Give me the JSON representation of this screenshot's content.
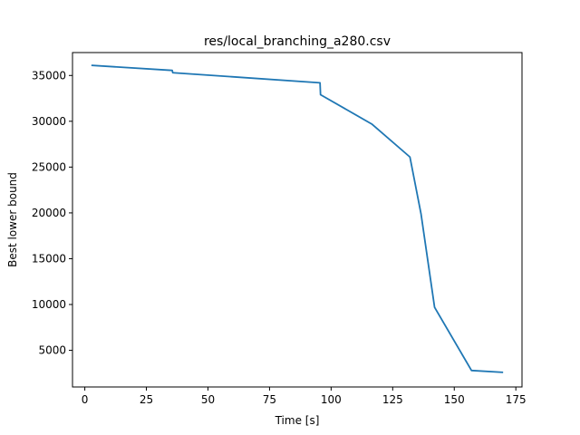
{
  "chart_data": {
    "type": "line",
    "title": "res/local_branching_a280.csv",
    "xlabel": "Time [s]",
    "ylabel": "Best lower bound",
    "xlim": [
      -5,
      177.5
    ],
    "ylim": [
      1000,
      37500
    ],
    "xticks": [
      0,
      25,
      50,
      75,
      100,
      125,
      150,
      175
    ],
    "yticks": [
      5000,
      10000,
      15000,
      20000,
      25000,
      30000,
      35000
    ],
    "grid": false,
    "line_color": "#1f77b4",
    "series": [
      {
        "x": [
          3,
          35.5,
          35.7,
          95.5,
          95.7,
          116.5,
          132,
          136.5,
          142,
          157,
          169.5
        ],
        "y": [
          36100,
          35550,
          35300,
          34200,
          32900,
          29700,
          26100,
          19900,
          9700,
          2800,
          2600
        ]
      }
    ]
  }
}
